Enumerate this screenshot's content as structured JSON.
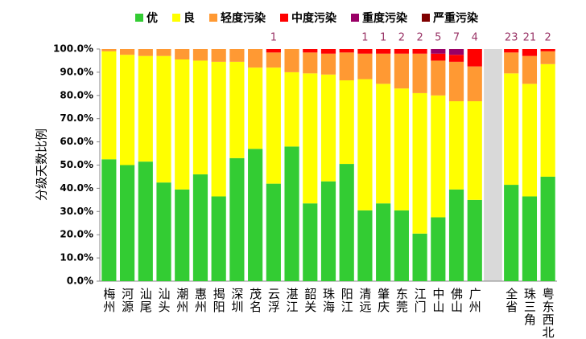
{
  "chart_data": {
    "type": "stacked_bar",
    "y_label": "分级天数比例",
    "categories": [
      "梅州",
      "河源",
      "汕尾",
      "汕头",
      "潮州",
      "惠州",
      "揭阳",
      "深圳",
      "茂名",
      "云浮",
      "湛江",
      "韶关",
      "珠海",
      "阳江",
      "清远",
      "肇庆",
      "东莞",
      "江门",
      "中山",
      "佛山",
      "广州",
      null,
      "全省",
      "珠三角",
      "粤东西北"
    ],
    "series": [
      {
        "name": "优",
        "color": "#33cc33",
        "values": [
          52.5,
          50,
          51.5,
          42.5,
          39.5,
          46,
          36.5,
          53,
          57,
          42,
          58,
          33.5,
          43,
          50.5,
          30.5,
          33.5,
          30.5,
          20.5,
          27.5,
          39.5,
          35,
          null,
          41.5,
          36.5,
          45
        ]
      },
      {
        "name": "良",
        "color": "#ffff00",
        "values": [
          46.5,
          47.5,
          45.5,
          54.5,
          56,
          49,
          58,
          41.5,
          35,
          50,
          32,
          56,
          46,
          36,
          56.5,
          51.5,
          52.5,
          60.5,
          52.5,
          38,
          42.5,
          null,
          48,
          48.5,
          48.5
        ]
      },
      {
        "name": "轻度污染",
        "color": "#ff9933",
        "values": [
          1,
          2.5,
          3,
          3,
          4.5,
          5,
          5.5,
          5.5,
          8,
          6.5,
          10,
          9,
          9,
          12,
          11,
          13,
          15,
          17,
          15,
          17,
          15,
          null,
          9,
          12,
          5.5
        ]
      },
      {
        "name": "中度污染",
        "color": "#ff0000",
        "values": [
          0,
          0,
          0,
          0,
          0,
          0,
          0,
          0,
          0,
          1.5,
          0,
          1.5,
          2,
          1.5,
          2,
          2,
          2,
          2,
          3,
          3,
          7.5,
          null,
          1.5,
          3,
          1
        ]
      },
      {
        "name": "重度污染",
        "color": "#990066",
        "values": [
          0,
          0,
          0,
          0,
          0,
          0,
          0,
          0,
          0,
          0,
          0,
          0,
          0,
          0,
          0,
          0,
          0,
          0,
          2,
          2.5,
          0,
          null,
          0,
          0,
          0
        ]
      },
      {
        "name": "严重污染",
        "color": "#7f0000",
        "values": [
          0,
          0,
          0,
          0,
          0,
          0,
          0,
          0,
          0,
          0,
          0,
          0,
          0,
          0,
          0,
          0,
          0,
          0,
          0,
          0,
          0,
          null,
          0,
          0,
          0
        ]
      }
    ],
    "top_labels": [
      null,
      null,
      null,
      null,
      null,
      null,
      null,
      null,
      null,
      "1",
      null,
      null,
      null,
      null,
      "1",
      "1",
      "2",
      "2",
      "5",
      "7",
      "4",
      null,
      "23",
      "21",
      "2"
    ],
    "ylim": [
      0,
      100
    ],
    "yticks": [
      {
        "value": 0,
        "label": "0.0%"
      },
      {
        "value": 10,
        "label": "10.0%"
      },
      {
        "value": 20,
        "label": "20.0%"
      },
      {
        "value": 30,
        "label": "30.0%"
      },
      {
        "value": 40,
        "label": "40.0%"
      },
      {
        "value": 50,
        "label": "50.0%"
      },
      {
        "value": 60,
        "label": "60.0%"
      },
      {
        "value": 70,
        "label": "70.0%"
      },
      {
        "value": 80,
        "label": "80.0%"
      },
      {
        "value": 90,
        "label": "90.0%"
      },
      {
        "value": 100,
        "label": "100.0%"
      }
    ]
  }
}
